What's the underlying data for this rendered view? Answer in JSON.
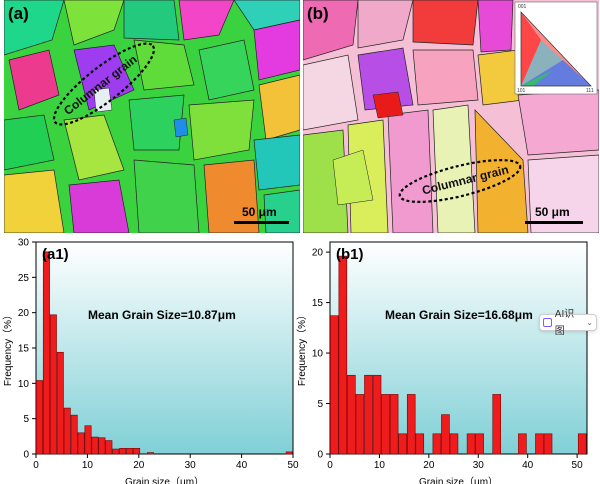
{
  "panels": {
    "a": {
      "label": "(a)",
      "scale": "50 μm",
      "ellipse_label": "Columnar grain"
    },
    "b": {
      "label": "(b)",
      "scale": "50 μm",
      "ellipse_label": "Columnar grain"
    }
  },
  "ipf_key": {
    "corner_top": "001",
    "corner_bl": "101",
    "corner_br": "111"
  },
  "ai_chip": {
    "label": "AI识图",
    "icon": "ai-scan-icon"
  },
  "colors": {
    "bar_fill": "#ee1c1c",
    "bar_stroke": "#7a0000",
    "bg_top": "#ffffff",
    "bg_bottom": "#7fd0d6"
  },
  "chart_data": [
    {
      "type": "bar",
      "panel_label": "(a1)",
      "annotation": "Mean Grain Size=10.87μm",
      "xlabel": "Grain size（μm）",
      "ylabel": "Frequency（%）",
      "xlim": [
        0,
        50
      ],
      "ylim": [
        0,
        30
      ],
      "xticks": [
        0,
        10,
        20,
        30,
        40,
        50
      ],
      "yticks": [
        0,
        5,
        10,
        15,
        20,
        25,
        30
      ],
      "bin_width": 1.35,
      "values": [
        10.4,
        28.6,
        19.7,
        14.4,
        6.5,
        5.5,
        3.0,
        4.0,
        2.4,
        2.3,
        1.9,
        0.7,
        0.8,
        0.8,
        0.8,
        0,
        0.2,
        0,
        0,
        0,
        0,
        0,
        0,
        0,
        0,
        0,
        0,
        0,
        0,
        0,
        0,
        0,
        0,
        0,
        0,
        0,
        0.3
      ]
    },
    {
      "type": "bar",
      "panel_label": "(b1)",
      "annotation": "Mean Grain Size=16.68μm",
      "xlabel": "Grain size（μm）",
      "ylabel": "Frequency（%）",
      "xlim": [
        0,
        52
      ],
      "ylim": [
        0,
        21
      ],
      "xticks": [
        0,
        10,
        20,
        30,
        40,
        50
      ],
      "yticks": [
        0,
        5,
        10,
        15,
        20
      ],
      "bin_width": 1.73,
      "values": [
        13.7,
        19.6,
        7.8,
        5.9,
        7.8,
        7.8,
        5.9,
        5.9,
        2.0,
        5.9,
        2.0,
        0,
        2.0,
        3.9,
        2.0,
        0,
        2.0,
        2.0,
        0,
        5.9,
        0,
        0,
        2.0,
        0,
        2.0,
        2.0,
        0,
        0,
        0,
        2.0
      ]
    }
  ]
}
